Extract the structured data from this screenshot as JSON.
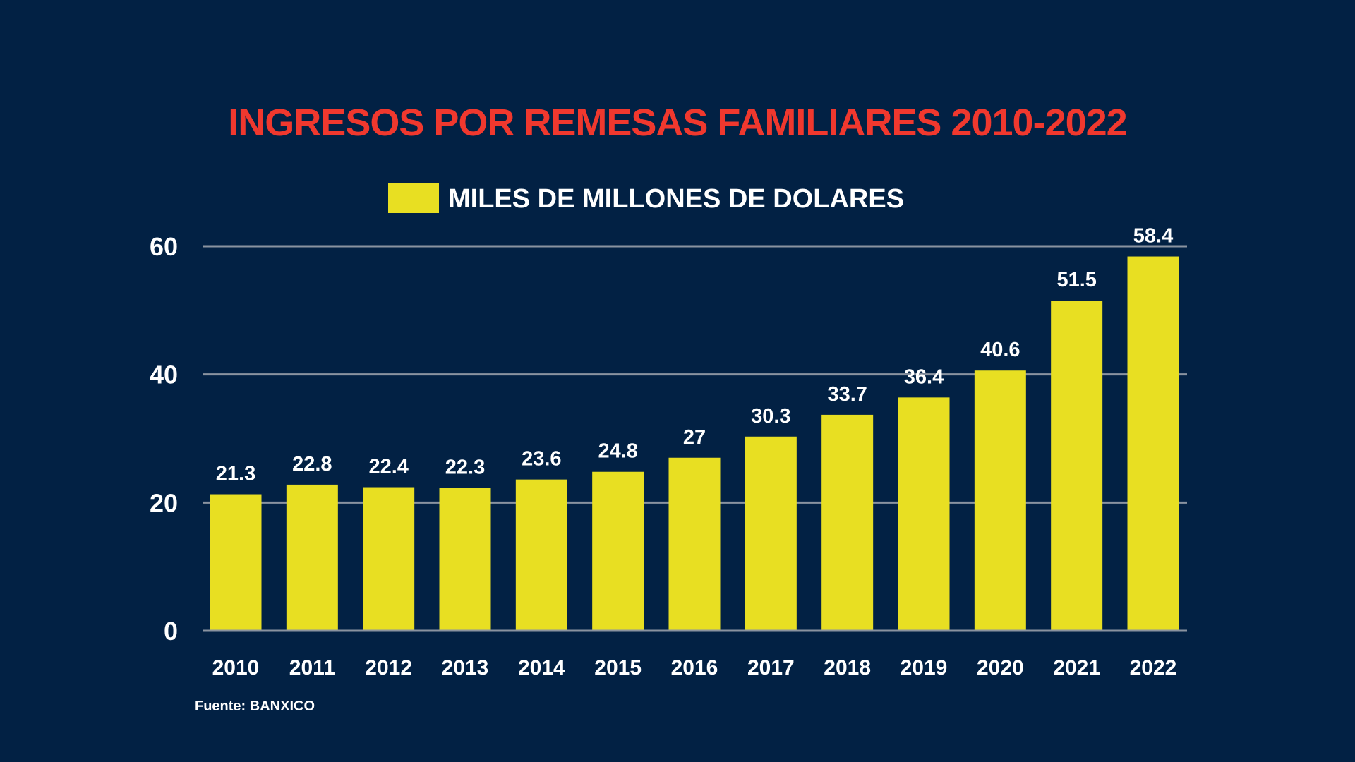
{
  "colors": {
    "background": "#022144",
    "title": "#f0382e",
    "bar": "#e8df22",
    "gridline": "#8a93a0",
    "text": "#ffffff"
  },
  "source": "Fuente: BANXICO",
  "chart_data": {
    "type": "bar",
    "title": "INGRESOS POR REMESAS FAMILIARES 2010-2022",
    "xlabel": "",
    "ylabel": "",
    "categories": [
      "2010",
      "2011",
      "2012",
      "2013",
      "2014",
      "2015",
      "2016",
      "2017",
      "2018",
      "2019",
      "2020",
      "2021",
      "2022"
    ],
    "series": [
      {
        "name": "MILES DE MILLONES DE DOLARES",
        "values": [
          21.3,
          22.8,
          22.4,
          22.3,
          23.6,
          24.8,
          27,
          30.3,
          33.7,
          36.4,
          40.6,
          51.5,
          58.4
        ],
        "labels": [
          "21.3",
          "22.8",
          "22.4",
          "22.3",
          "23.6",
          "24.8",
          "27",
          "30.3",
          "33.7",
          "36.4",
          "40.6",
          "51.5",
          "58.4"
        ]
      }
    ],
    "ylim": [
      0,
      60
    ],
    "yticks": [
      "0",
      "20",
      "40",
      "60"
    ],
    "grid": true,
    "legend": "top-center"
  }
}
